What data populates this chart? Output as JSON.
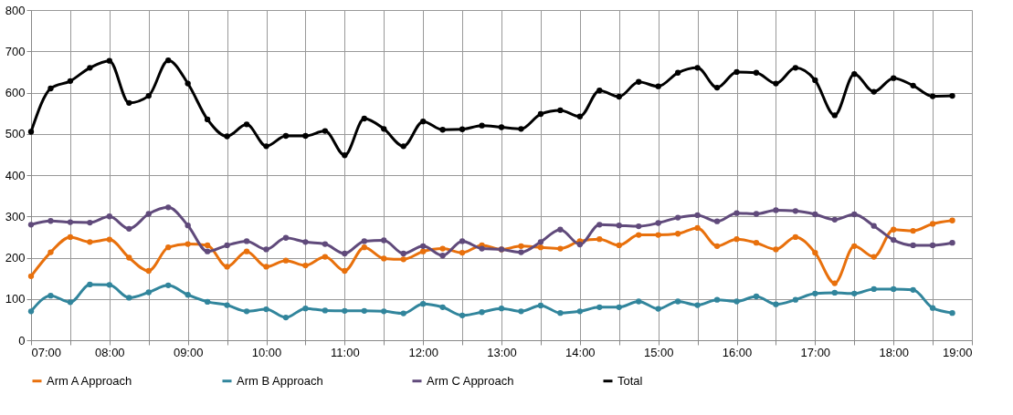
{
  "chart_data": {
    "type": "line",
    "marker": "circle",
    "line_style": "solid",
    "grid": true,
    "legend": "bottom",
    "x": [
      7,
      7.25,
      7.5,
      7.75,
      8,
      8.25,
      8.5,
      8.75,
      9,
      9.25,
      9.5,
      9.75,
      10,
      10.25,
      10.5,
      10.75,
      11,
      11.25,
      11.5,
      11.75,
      12,
      12.25,
      12.5,
      12.75,
      13,
      13.25,
      13.5,
      13.75,
      14,
      14.25,
      14.5,
      14.75,
      15,
      15.25,
      15.5,
      15.75,
      16,
      16.25,
      16.5,
      16.75,
      17,
      17.25,
      17.5,
      17.75,
      18,
      18.25,
      18.5,
      18.75
    ],
    "xlim": [
      7,
      19
    ],
    "xticks": [
      {
        "value": 7,
        "label": "07:00"
      },
      {
        "value": 7.5,
        "label": null
      },
      {
        "value": 8,
        "label": "08:00"
      },
      {
        "value": 8.5,
        "label": null
      },
      {
        "value": 9,
        "label": "09:00"
      },
      {
        "value": 9.5,
        "label": null
      },
      {
        "value": 10,
        "label": "10:00"
      },
      {
        "value": 10.5,
        "label": null
      },
      {
        "value": 11,
        "label": "11:00"
      },
      {
        "value": 11.5,
        "label": null
      },
      {
        "value": 12,
        "label": "12:00"
      },
      {
        "value": 12.5,
        "label": null
      },
      {
        "value": 13,
        "label": "13:00"
      },
      {
        "value": 13.5,
        "label": null
      },
      {
        "value": 14,
        "label": "14:00"
      },
      {
        "value": 14.5,
        "label": null
      },
      {
        "value": 15,
        "label": "15:00"
      },
      {
        "value": 15.5,
        "label": null
      },
      {
        "value": 16,
        "label": "16:00"
      },
      {
        "value": 16.5,
        "label": null
      },
      {
        "value": 17,
        "label": "17:00"
      },
      {
        "value": 17.5,
        "label": null
      },
      {
        "value": 18,
        "label": "18:00"
      },
      {
        "value": 18.5,
        "label": null
      },
      {
        "value": 19,
        "label": "19:00"
      }
    ],
    "ylim": [
      0,
      800
    ],
    "yticks": [
      0,
      100,
      200,
      300,
      400,
      500,
      600,
      700,
      800
    ],
    "series": [
      {
        "name": "Arm A Approach",
        "color": "#e8700c",
        "values": [
          155,
          213,
          250,
          238,
          244,
          200,
          168,
          225,
          233,
          230,
          178,
          215,
          178,
          193,
          181,
          202,
          168,
          225,
          198,
          196,
          215,
          222,
          212,
          230,
          220,
          228,
          225,
          222,
          240,
          245,
          230,
          255,
          255,
          258,
          272,
          228,
          245,
          236,
          220,
          250,
          212,
          138,
          228,
          202,
          268,
          265,
          282,
          290
        ]
      },
      {
        "name": "Arm B Approach",
        "color": "#31859c",
        "values": [
          70,
          108,
          92,
          135,
          134,
          103,
          116,
          133,
          110,
          93,
          85,
          70,
          75,
          55,
          77,
          72,
          71,
          71,
          70,
          65,
          88,
          80,
          60,
          68,
          77,
          70,
          84,
          66,
          70,
          80,
          80,
          94,
          76,
          94,
          85,
          98,
          94,
          106,
          87,
          98,
          113,
          115,
          113,
          124,
          124,
          122,
          78,
          66
        ]
      },
      {
        "name": "Arm C Approach",
        "color": "#604a7b",
        "values": [
          280,
          289,
          286,
          285,
          300,
          270,
          306,
          322,
          278,
          215,
          230,
          240,
          220,
          248,
          238,
          233,
          210,
          240,
          242,
          210,
          228,
          205,
          240,
          222,
          220,
          213,
          238,
          268,
          232,
          280,
          278,
          276,
          284,
          297,
          303,
          288,
          308,
          306,
          315,
          313,
          305,
          292,
          305,
          277,
          243,
          230,
          230,
          236
        ]
      },
      {
        "name": "Total",
        "color": "#000000",
        "values": [
          505,
          610,
          628,
          660,
          677,
          575,
          592,
          678,
          622,
          535,
          494,
          523,
          470,
          495,
          495,
          507,
          448,
          537,
          512,
          470,
          530,
          510,
          511,
          520,
          516,
          512,
          548,
          557,
          542,
          605,
          590,
          626,
          615,
          648,
          660,
          612,
          650,
          648,
          622,
          660,
          630,
          545,
          645,
          602,
          635,
          617,
          591,
          592
        ]
      }
    ]
  }
}
